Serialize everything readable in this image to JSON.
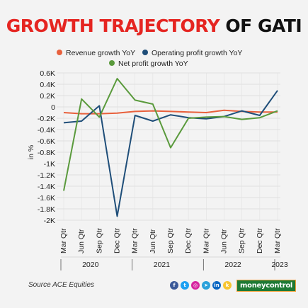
{
  "title": {
    "part1": "GROWTH TRAJECTORY",
    "part2": "OF GATI"
  },
  "source": "Source ACE Equities",
  "brand": "moneycontrol",
  "social_icons": [
    "facebook-icon",
    "twitter-icon",
    "instagram-icon",
    "telegram-icon",
    "linkedin-icon",
    "koo-icon"
  ],
  "colors": {
    "title_red": "#e52521",
    "revenue": "#e8603c",
    "operating": "#1f4e79",
    "net": "#5a9a3c",
    "brand_green": "#1e7a34"
  },
  "chart_data": {
    "type": "line",
    "ylabel": "in %",
    "categories": [
      "Mar Qtr",
      "Jun Qtr",
      "Sep Qtr",
      "Dec Qtr",
      "Mar Qtr",
      "Jun Qtr",
      "Sep Qtr",
      "Dec Qtr",
      "Mar Qtr",
      "Jun Qtr",
      "Sep Qtr",
      "Dec Qtr",
      "Mar Qtr"
    ],
    "year_labels": [
      {
        "label": "2020",
        "start": 0,
        "end": 3
      },
      {
        "label": "2021",
        "start": 4,
        "end": 7
      },
      {
        "label": "2022",
        "start": 8,
        "end": 11
      },
      {
        "label": "2023",
        "start": 12,
        "end": 12
      }
    ],
    "yticks": [
      0.6,
      0.4,
      0.2,
      0,
      -0.2,
      -0.4,
      -0.6,
      -0.8,
      -1,
      -1.2,
      -1.4,
      -1.6,
      -1.8,
      -2
    ],
    "ytick_labels": [
      "0.6K",
      "0.4K",
      "0.2K",
      "0",
      "-0.2K",
      "-0.4K",
      "-0.6K",
      "-0.8K",
      "-1K",
      "-1.2K",
      "-1.4K",
      "-1.6K",
      "-1.8K",
      "-2K"
    ],
    "ylim": [
      -2,
      0.6
    ],
    "legend_position": "top",
    "series": [
      {
        "name": "Revenue growth YoY",
        "values": [
          -0.1,
          -0.12,
          -0.12,
          -0.11,
          -0.08,
          -0.07,
          -0.08,
          -0.09,
          -0.1,
          -0.06,
          -0.08,
          -0.09,
          -0.09
        ]
      },
      {
        "name": "Operating profit growth YoY",
        "values": [
          -0.28,
          -0.25,
          0.02,
          -1.93,
          -0.15,
          -0.25,
          -0.14,
          -0.19,
          -0.21,
          -0.17,
          -0.07,
          -0.15,
          0.29
        ]
      },
      {
        "name": "Net profit growth YoY",
        "values": [
          -1.48,
          0.14,
          -0.18,
          0.5,
          0.12,
          0.05,
          -0.72,
          -0.2,
          -0.18,
          -0.17,
          -0.22,
          -0.19,
          -0.07
        ]
      }
    ]
  }
}
